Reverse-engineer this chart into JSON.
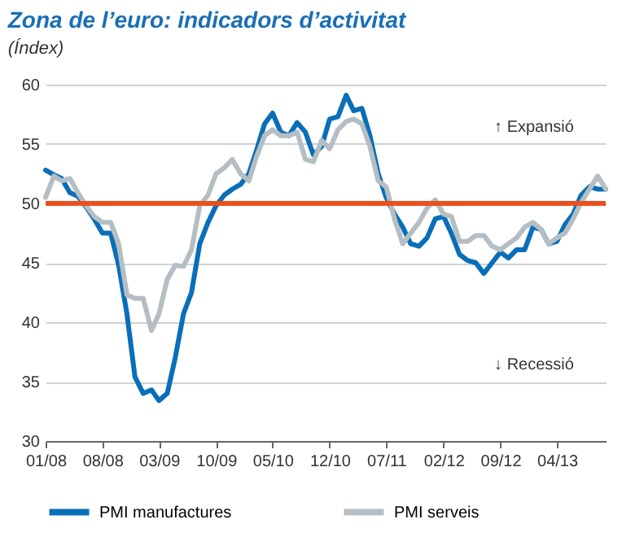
{
  "chart_data": {
    "type": "line",
    "title": "Zona de l’euro: indicadors d’activitat",
    "subtitle": "(Índex)",
    "x": [
      "2008-01",
      "2008-02",
      "2008-03",
      "2008-04",
      "2008-05",
      "2008-06",
      "2008-07",
      "2008-08",
      "2008-09",
      "2008-10",
      "2008-11",
      "2008-12",
      "2009-01",
      "2009-02",
      "2009-03",
      "2009-04",
      "2009-05",
      "2009-06",
      "2009-07",
      "2009-08",
      "2009-09",
      "2009-10",
      "2009-11",
      "2009-12",
      "2010-01",
      "2010-02",
      "2010-03",
      "2010-04",
      "2010-05",
      "2010-06",
      "2010-07",
      "2010-08",
      "2010-09",
      "2010-10",
      "2010-11",
      "2010-12",
      "2011-01",
      "2011-02",
      "2011-03",
      "2011-04",
      "2011-05",
      "2011-06",
      "2011-07",
      "2011-08",
      "2011-09",
      "2011-10",
      "2011-11",
      "2011-12",
      "2012-01",
      "2012-02",
      "2012-03",
      "2012-04",
      "2012-05",
      "2012-06",
      "2012-07",
      "2012-08",
      "2012-09",
      "2012-10",
      "2012-11",
      "2012-12",
      "2013-01",
      "2013-02",
      "2013-03",
      "2013-04",
      "2013-05",
      "2013-06",
      "2013-07",
      "2013-08",
      "2013-09",
      "2013-10"
    ],
    "series": [
      {
        "name": "PMI manufactures",
        "color": "#0a6eb8",
        "values": [
          52.8,
          52.4,
          52.1,
          50.9,
          50.6,
          49.7,
          48.7,
          47.5,
          47.5,
          44.8,
          40.7,
          35.4,
          34.0,
          34.3,
          33.4,
          34.0,
          37.0,
          40.7,
          42.5,
          46.6,
          48.4,
          49.8,
          50.7,
          51.2,
          51.6,
          52.5,
          54.4,
          56.7,
          57.6,
          56.0,
          55.7,
          56.8,
          56.0,
          54.1,
          54.8,
          57.1,
          57.3,
          59.1,
          57.8,
          58.0,
          55.7,
          52.5,
          50.5,
          49.1,
          48.0,
          46.6,
          46.4,
          47.1,
          48.7,
          48.9,
          47.5,
          45.7,
          45.2,
          45.0,
          44.1,
          45.0,
          45.9,
          45.4,
          46.1,
          46.1,
          48.0,
          47.8,
          46.6,
          46.8,
          48.2,
          49.1,
          50.7,
          51.4,
          51.2,
          51.2
        ]
      },
      {
        "name": "PMI serveis",
        "color": "#b4bec3",
        "values": [
          50.5,
          52.3,
          51.9,
          52.1,
          50.9,
          49.8,
          48.9,
          48.4,
          48.4,
          46.6,
          42.3,
          42.0,
          42.0,
          39.3,
          40.7,
          43.6,
          44.8,
          44.7,
          46.1,
          49.8,
          50.7,
          52.5,
          53.0,
          53.7,
          52.5,
          51.9,
          53.9,
          55.7,
          56.2,
          55.7,
          55.7,
          56.0,
          53.7,
          53.5,
          55.3,
          54.6,
          56.2,
          56.9,
          57.1,
          56.7,
          54.8,
          51.9,
          51.4,
          48.7,
          46.6,
          47.5,
          48.4,
          49.6,
          50.3,
          49.1,
          48.9,
          46.8,
          46.8,
          47.3,
          47.3,
          46.4,
          46.1,
          46.6,
          47.1,
          48.0,
          48.4,
          47.8,
          46.6,
          47.1,
          47.5,
          48.7,
          50.1,
          51.2,
          52.3,
          51.2
        ]
      }
    ],
    "xlim": [
      "2008-01",
      "2013-10"
    ],
    "xticks": [
      {
        "value": "2008-01",
        "label": "01/08"
      },
      {
        "value": "2008-08",
        "label": "08/08"
      },
      {
        "value": "2009-03",
        "label": "03/09"
      },
      {
        "value": "2009-10",
        "label": "10/09"
      },
      {
        "value": "2010-05",
        "label": "05/10"
      },
      {
        "value": "2010-12",
        "label": "12/10"
      },
      {
        "value": "2011-07",
        "label": "07/11"
      },
      {
        "value": "2012-02",
        "label": "02/12"
      },
      {
        "value": "2012-09",
        "label": "09/12"
      },
      {
        "value": "2013-04",
        "label": "04/13"
      }
    ],
    "ylim": [
      30,
      60
    ],
    "yticks": [
      30,
      35,
      40,
      45,
      50,
      55,
      60
    ],
    "ref_lines": [
      {
        "axis": "y",
        "value": 50,
        "color": "#e8501e"
      }
    ],
    "annotations": [
      "↑ Expansió",
      "↓ Recessió"
    ],
    "grid": "y",
    "legend": "bottom",
    "line_style": "solid"
  }
}
